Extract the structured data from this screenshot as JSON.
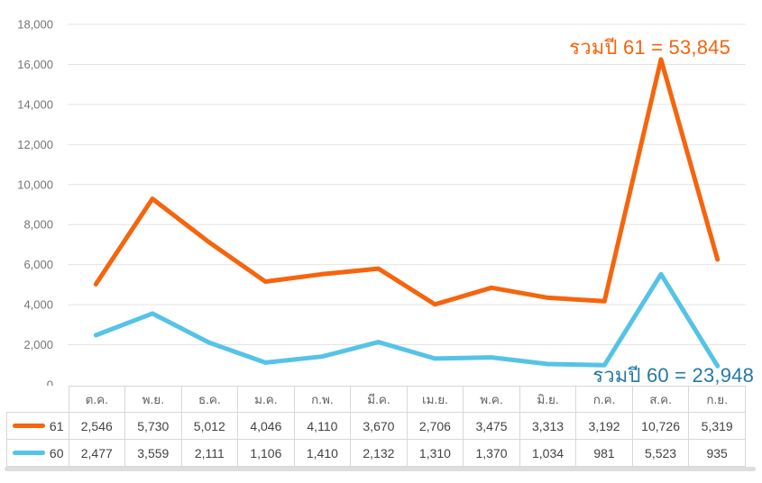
{
  "chart_data": {
    "type": "line",
    "stacked": true,
    "title": "",
    "xlabel": "",
    "ylabel": "",
    "grid": true,
    "ylim": [
      0,
      18000
    ],
    "y_tick_step": 2000,
    "legend_position": "table-left",
    "x_categories": [
      "ต.ค.",
      "พ.ย.",
      "ธ.ค.",
      "ม.ค.",
      "ก.พ.",
      "มี.ค.",
      "เม.ย.",
      "พ.ค.",
      "มิ.ย.",
      "ก.ค.",
      "ส.ค.",
      "ก.ย."
    ],
    "series": [
      {
        "name": "61",
        "color": "#F5650D",
        "values": [
          2546,
          5730,
          5012,
          4046,
          4110,
          3670,
          2706,
          3475,
          3313,
          3192,
          10726,
          5319
        ]
      },
      {
        "name": "60",
        "color": "#55C3E6",
        "values": [
          2477,
          3559,
          2111,
          1106,
          1410,
          2132,
          1310,
          1370,
          1034,
          981,
          5523,
          935
        ]
      }
    ],
    "annotations": [
      {
        "text": "รวมปี 61 = 53,845",
        "series": "61",
        "total": 53845,
        "color": "#F5650D"
      },
      {
        "text": "รวมปี 60 = 23,948",
        "series": "60",
        "total": 23948,
        "color": "#2579A1"
      }
    ]
  }
}
